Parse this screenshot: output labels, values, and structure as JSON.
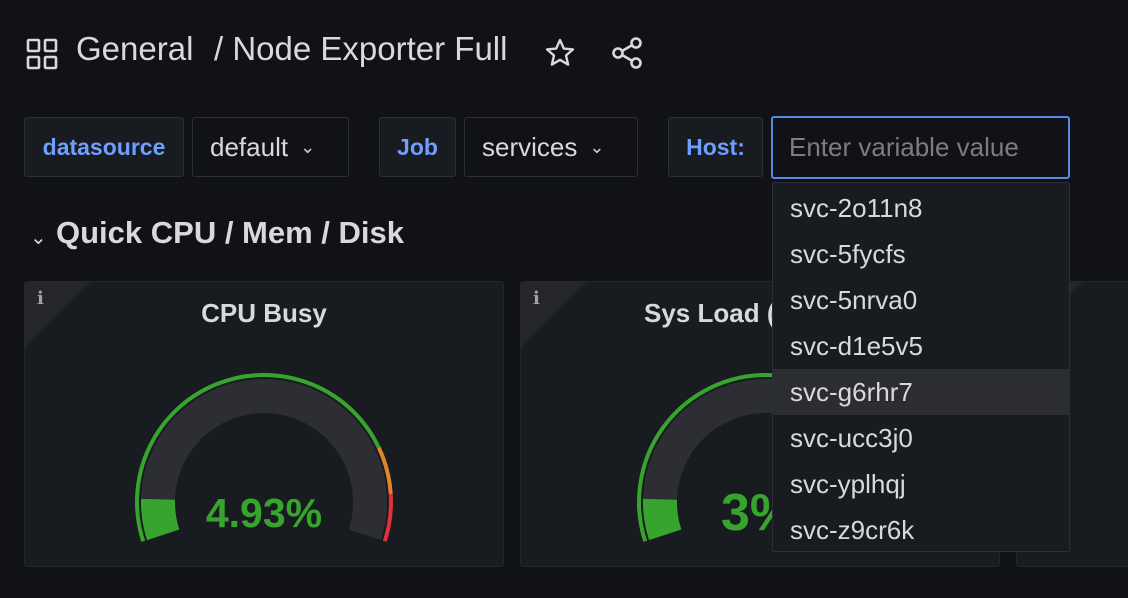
{
  "header": {
    "folder": "General",
    "title": "/ Node Exporter Full",
    "icons": [
      "dashboard-grid-icon",
      "star-icon",
      "share-icon"
    ]
  },
  "variables": {
    "datasource": {
      "label": "datasource",
      "value": "default"
    },
    "job": {
      "label": "Job",
      "value": "services"
    },
    "host": {
      "label": "Host:",
      "placeholder": "Enter variable value",
      "value": ""
    }
  },
  "host_options": [
    "svc-2o11n8",
    "svc-5fycfs",
    "svc-5nrva0",
    "svc-d1e5v5",
    "svc-g6rhr7",
    "svc-ucc3j0",
    "svc-yplhqj",
    "svc-z9cr6k"
  ],
  "highlighted_option": "svc-g6rhr7",
  "row": {
    "title": "Quick CPU / Mem / Disk"
  },
  "panels": [
    {
      "title": "CPU Busy",
      "value_text": "4.93%",
      "gauge_fraction": 0.0493
    },
    {
      "title": "Sys Load (",
      "value_text": "3%",
      "gauge_fraction": 0.03
    }
  ],
  "colors": {
    "accent": "#6e9fff",
    "gauge_green": "#37a52d",
    "threshold_orange": "#e0852c",
    "threshold_red": "#e0303a",
    "background": "#111217"
  }
}
